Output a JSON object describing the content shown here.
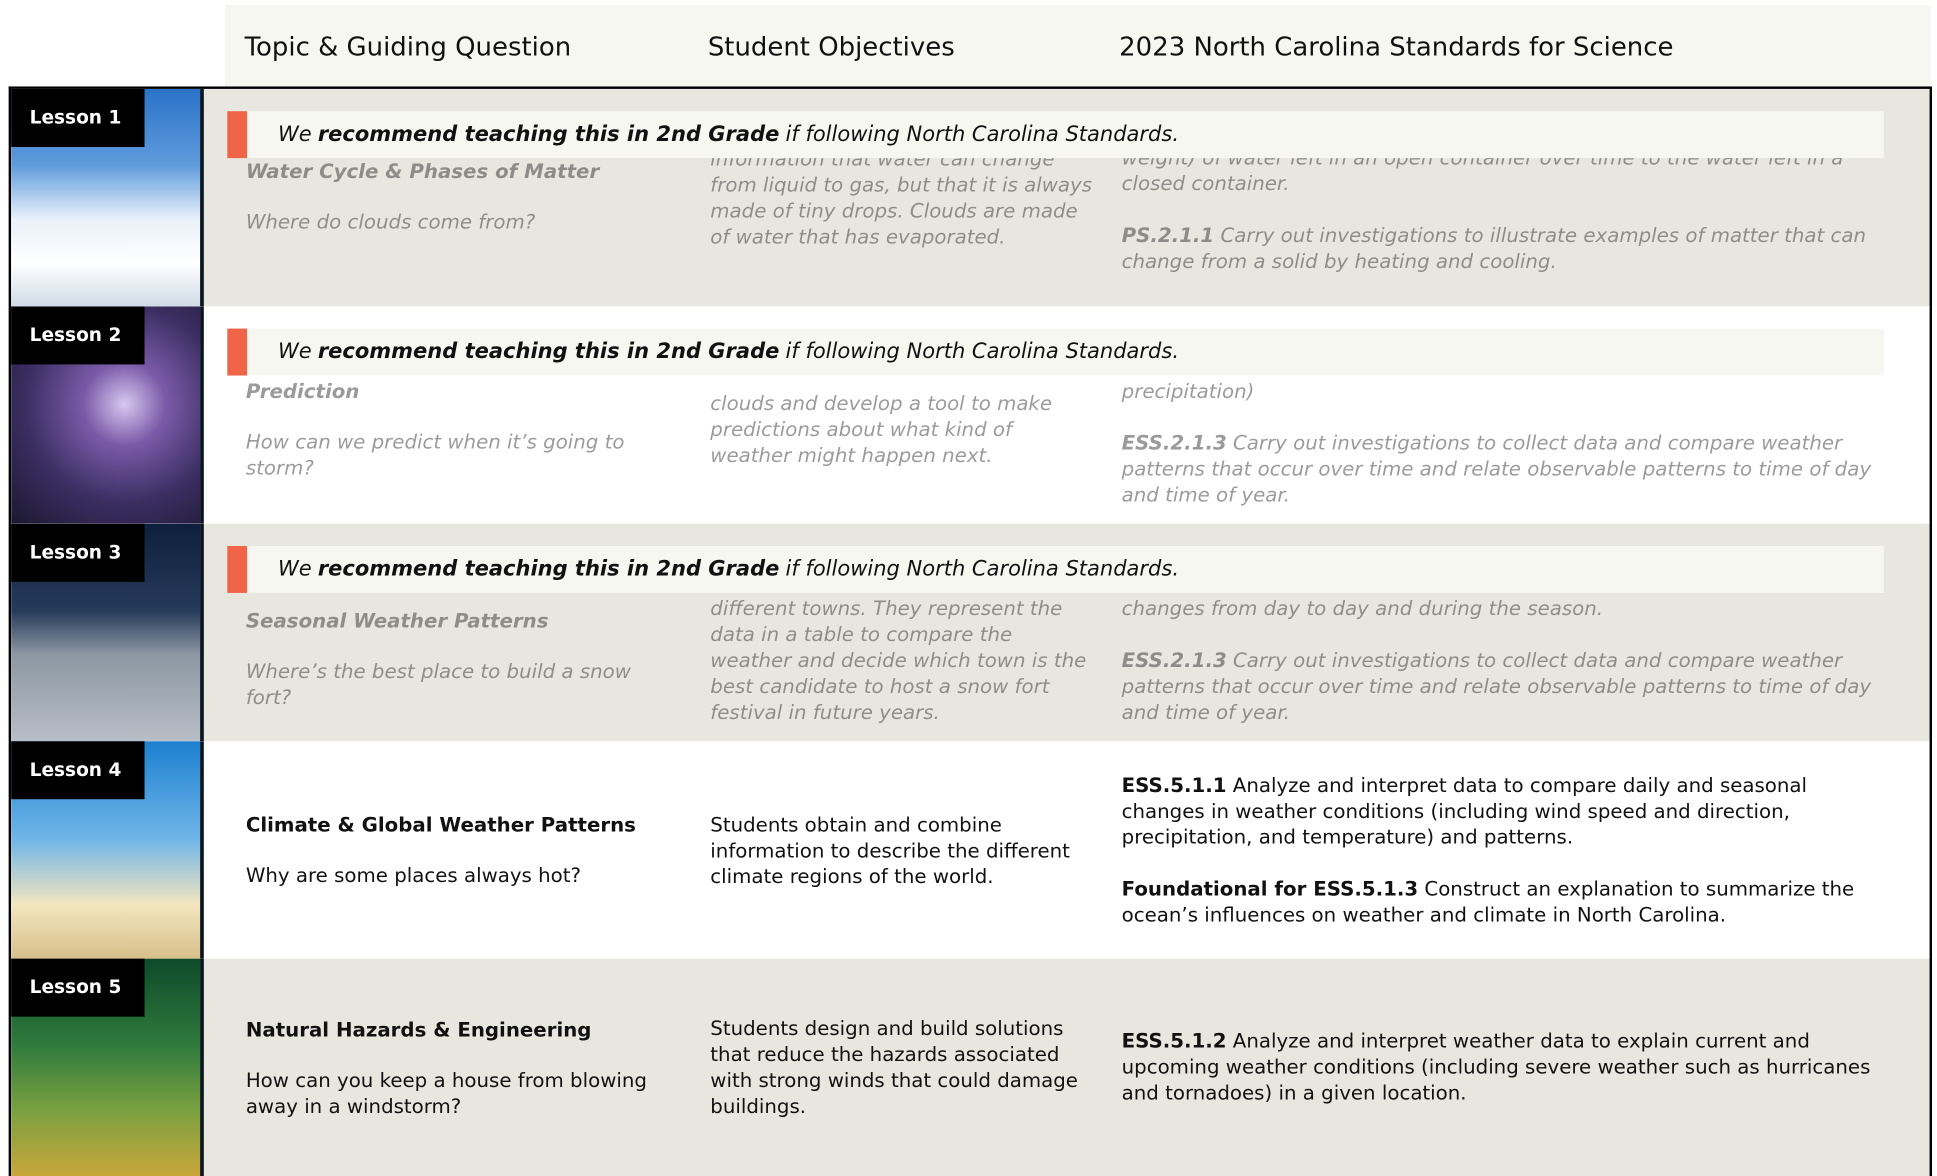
{
  "header": {
    "columns": [
      "Topic & Guiding Question",
      "Student Objectives",
      "2023 North Carolina Standards for Science"
    ]
  },
  "rows": [
    {
      "lesson": "Lesson 1",
      "banner": {
        "prefix": "We",
        "emphasis": "recommend teaching this in 2nd Grade",
        "suffix": "if following North Carolina Standards."
      },
      "topic": "Water Cycle & Phases of Matter",
      "question": "Where do clouds come from?",
      "objectives": "information that water can change from liquid to gas, but that it is always made of tiny drops. Clouds are made of water that has evaporated.",
      "standards": [
        {
          "text": "weight) of water left in an open container over time to the water left in a closed container."
        },
        {
          "code": "PS.2.1.1",
          "text": "Carry out investigations to illustrate examples of matter that can change from a solid by heating and cooling."
        }
      ]
    },
    {
      "lesson": "Lesson 2",
      "banner": {
        "prefix": "We",
        "emphasis": "recommend teaching this in 2nd Grade",
        "suffix": "if following North Carolina Standards."
      },
      "topic": "Prediction",
      "question": "How can we predict when it’s going to storm?",
      "objectives": "clouds and develop a tool to make predictions about what kind of weather might happen next.",
      "standards": [
        {
          "text": "precipitation)"
        },
        {
          "code": "ESS.2.1.3",
          "text": "Carry out investigations to collect data and compare weather patterns that occur over time and relate observable patterns to time of day and time of year."
        }
      ]
    },
    {
      "lesson": "Lesson 3",
      "banner": {
        "prefix": "We",
        "emphasis": "recommend teaching this in 2nd Grade",
        "suffix": "if following North Carolina Standards."
      },
      "topic": "Seasonal Weather Patterns",
      "question": "Where’s the best place to build a snow fort?",
      "objectives": "different towns. They represent the data in a table to compare the weather and decide which town is the best candidate to host a snow fort festival in future years.",
      "standards": [
        {
          "text": "changes from day to day and during the season."
        },
        {
          "code": "ESS.2.1.3",
          "text": "Carry out investigations to collect data and compare weather patterns that occur over time and relate observable patterns to time of day and time of year."
        }
      ]
    },
    {
      "lesson": "Lesson 4",
      "topic": "Climate & Global Weather Patterns",
      "question": "Why are some places always hot?",
      "objectives": "Students obtain and combine information to describe the different climate regions of the world.",
      "standards": [
        {
          "code": "ESS.5.1.1",
          "text": "Analyze and interpret data to compare daily and seasonal changes in weather conditions (including wind speed and direction, precipitation, and temperature) and patterns."
        },
        {
          "code": "Foundational for ESS.5.1.3",
          "text": "Construct an explanation to summarize the ocean’s influences on weather and climate in North Carolina."
        }
      ]
    },
    {
      "lesson": "Lesson 5",
      "topic": "Natural Hazards & Engineering",
      "question": "How can you keep a house from blowing away in a windstorm?",
      "objectives": "Students design and build solutions that reduce the hazards associated with strong winds that could damage buildings.",
      "standards": [
        {
          "code": "ESS.5.1.2",
          "text": "Analyze and interpret weather data to explain current and upcoming weather conditions (including severe weather such as hurricanes and tornadoes) in a given location."
        }
      ]
    }
  ]
}
